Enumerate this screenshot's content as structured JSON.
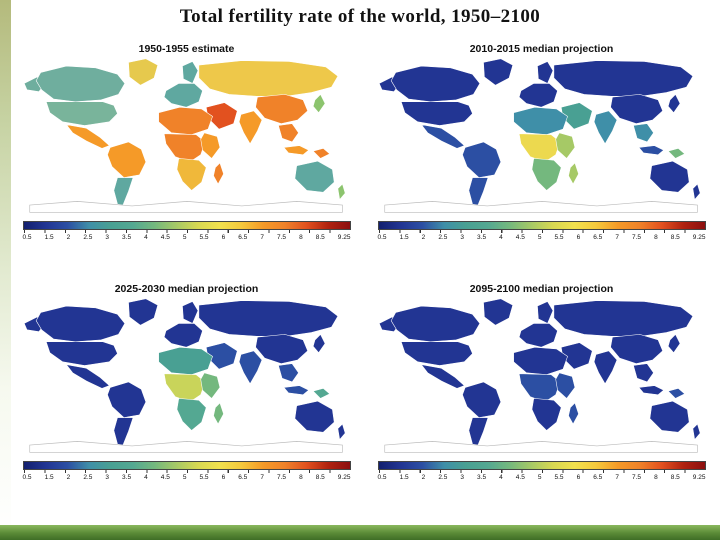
{
  "slide": {
    "title": "Total fertility rate of the world, 1950–2100"
  },
  "colorbar": {
    "ticks": [
      "0.5",
      "1.5",
      "2",
      "2.5",
      "3",
      "3.5",
      "4",
      "4.5",
      "5",
      "5.5",
      "6",
      "6.5",
      "7",
      "7.5",
      "8",
      "8.5",
      "9.25"
    ],
    "gradient": [
      "#13206e",
      "#223593",
      "#2c4fa3",
      "#3f8fa8",
      "#49a093",
      "#54a892",
      "#74b87e",
      "#a6c966",
      "#d8d852",
      "#f2e14e",
      "#f5c93c",
      "#f59a28",
      "#f08229",
      "#e2511f",
      "#b0220f",
      "#8c0f0f"
    ]
  },
  "maps": [
    {
      "title": "1950-1955 estimate",
      "regions": {
        "alaska": "#6fae9e",
        "canada": "#6fae9e",
        "greenland": "#e6c94d",
        "usa": "#79b49b",
        "mexico": "#f59a28",
        "southamerica": "#f59a28",
        "argentina": "#5fa8a0",
        "scandinavia": "#5fa8a0",
        "europe": "#5fa8a0",
        "russia": "#eec84a",
        "middleeast": "#e2511f",
        "northafrica": "#f08229",
        "westafrica": "#f08229",
        "eastafrica": "#f59a28",
        "southernafrica": "#f0b83a",
        "madagascar": "#f08229",
        "india": "#f59a28",
        "china": "#f08229",
        "japan": "#8cc46e",
        "seasia": "#f08229",
        "indonesia": "#f59a28",
        "newguinea": "#f08229",
        "australia": "#5fa8a0",
        "newzealand": "#8cc46e"
      }
    },
    {
      "title": "2010-2015 median projection",
      "regions": {
        "alaska": "#223593",
        "canada": "#223593",
        "greenland": "#223593",
        "usa": "#223593",
        "mexico": "#2c4fa3",
        "southamerica": "#2c4fa3",
        "argentina": "#2c4fa3",
        "scandinavia": "#223593",
        "europe": "#223593",
        "russia": "#223593",
        "middleeast": "#49a093",
        "northafrica": "#3f8fa8",
        "westafrica": "#ecd94f",
        "eastafrica": "#a6c966",
        "southernafrica": "#74b87e",
        "madagascar": "#a6c966",
        "india": "#3f8fa8",
        "china": "#223593",
        "japan": "#223593",
        "seasia": "#3f8fa8",
        "indonesia": "#2c4fa3",
        "newguinea": "#74b87e",
        "australia": "#223593",
        "newzealand": "#223593"
      }
    },
    {
      "title": "2025-2030 median projection",
      "regions": {
        "alaska": "#223593",
        "canada": "#223593",
        "greenland": "#223593",
        "usa": "#223593",
        "mexico": "#223593",
        "southamerica": "#223593",
        "argentina": "#223593",
        "scandinavia": "#223593",
        "europe": "#223593",
        "russia": "#223593",
        "middleeast": "#2c4fa3",
        "northafrica": "#49a093",
        "westafrica": "#c9d45a",
        "eastafrica": "#74b87e",
        "southernafrica": "#54a892",
        "madagascar": "#74b87e",
        "india": "#2c4fa3",
        "china": "#223593",
        "japan": "#223593",
        "seasia": "#2c4fa3",
        "indonesia": "#2c4fa3",
        "newguinea": "#54a892",
        "australia": "#223593",
        "newzealand": "#223593"
      }
    },
    {
      "title": "2095-2100 median projection",
      "regions": {
        "alaska": "#223593",
        "canada": "#223593",
        "greenland": "#223593",
        "usa": "#223593",
        "mexico": "#223593",
        "southamerica": "#223593",
        "argentina": "#223593",
        "scandinavia": "#223593",
        "europe": "#223593",
        "russia": "#223593",
        "middleeast": "#223593",
        "northafrica": "#223593",
        "westafrica": "#2c4fa3",
        "eastafrica": "#2c4fa3",
        "southernafrica": "#223593",
        "madagascar": "#2c4fa3",
        "india": "#223593",
        "china": "#223593",
        "japan": "#223593",
        "seasia": "#223593",
        "indonesia": "#223593",
        "newguinea": "#2c4fa3",
        "australia": "#223593",
        "newzealand": "#223593"
      }
    }
  ]
}
